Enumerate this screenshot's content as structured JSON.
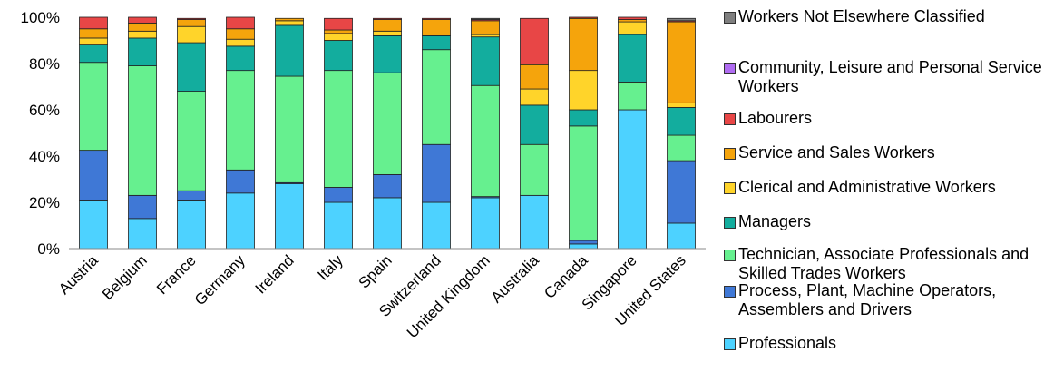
{
  "chart_data": {
    "type": "bar",
    "stacked": true,
    "title": "",
    "xlabel": "",
    "ylabel": "",
    "ylim": [
      0,
      100
    ],
    "yticks": [
      "0%",
      "20%",
      "40%",
      "60%",
      "80%",
      "100%"
    ],
    "yticks_values": [
      0,
      20,
      40,
      60,
      80,
      100
    ],
    "legend_position": "right",
    "categories": [
      "Austria",
      "Belgium",
      "France",
      "Germany",
      "Ireland",
      "Italy",
      "Spain",
      "Switzerland",
      "United Kingdom",
      "Australia",
      "Canada",
      "Singapore",
      "United States"
    ],
    "series": [
      {
        "name": "Professionals",
        "color": "#4dd2ff",
        "values": [
          21,
          13,
          21,
          24,
          28,
          20,
          22,
          20,
          22,
          23,
          2,
          60,
          11
        ]
      },
      {
        "name": "Process, Plant, Machine Operators, Assemblers and Drivers",
        "color": "#3f78d6",
        "values": [
          21.5,
          10,
          4,
          10,
          0.5,
          6.5,
          10,
          25,
          0.5,
          0,
          1.5,
          0,
          27
        ]
      },
      {
        "name": "Technician, Associate Professionals and Skilled Trades Workers",
        "color": "#66f08f",
        "values": [
          38,
          56,
          43,
          43,
          46,
          50.5,
          44,
          41,
          48,
          22,
          49.5,
          12,
          11
        ]
      },
      {
        "name": "Managers",
        "color": "#13ad9e",
        "values": [
          7.5,
          12,
          21,
          10.5,
          22,
          13,
          16,
          6,
          21,
          17,
          7,
          20.5,
          12
        ]
      },
      {
        "name": "Clerical and Administrative Workers",
        "color": "#ffd42a",
        "values": [
          3,
          3,
          7,
          3,
          2,
          3,
          2,
          0,
          1,
          7,
          17,
          5.5,
          2
        ]
      },
      {
        "name": "Service and Sales Workers",
        "color": "#f5a40c",
        "values": [
          4,
          3.5,
          3,
          4.5,
          1,
          1.5,
          5,
          7,
          6,
          10.5,
          22.5,
          1,
          35
        ]
      },
      {
        "name": "Labourers",
        "color": "#e84646",
        "values": [
          5,
          2.5,
          0.5,
          5,
          0,
          5,
          0.5,
          0.5,
          0.5,
          20,
          0.5,
          1,
          0.5
        ]
      },
      {
        "name": "Community, Leisure and Personal Service Workers",
        "color": "#b06cf2",
        "values": [
          0,
          0,
          0,
          0,
          0,
          0,
          0,
          0,
          0,
          0,
          0,
          0,
          0
        ]
      },
      {
        "name": "Workers Not Elsewhere Classified",
        "color": "#7f7f7f",
        "values": [
          0,
          0,
          0,
          0,
          0,
          0,
          0,
          0,
          0.5,
          0,
          0,
          0,
          1
        ]
      }
    ],
    "legend_order": [
      8,
      7,
      6,
      5,
      4,
      3,
      2,
      1,
      0
    ]
  }
}
